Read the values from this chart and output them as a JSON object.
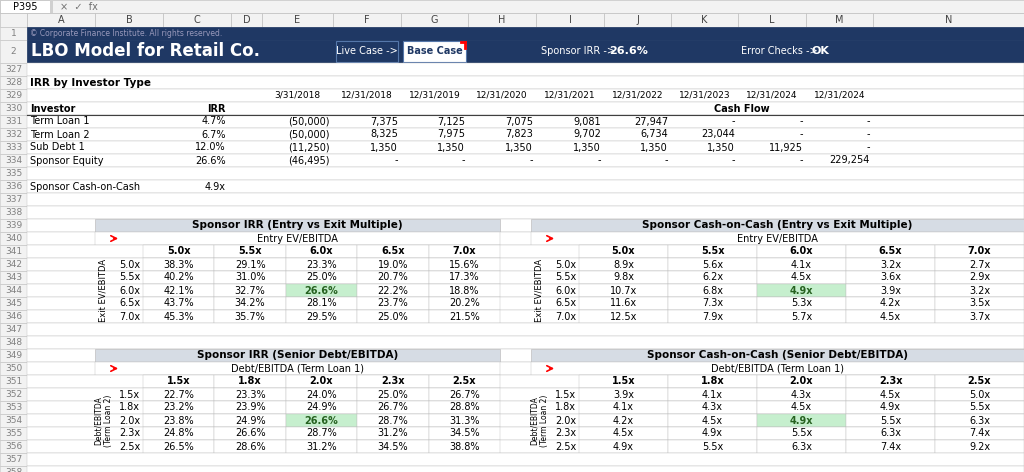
{
  "header_bg": "#1f3864",
  "copyright": "© Corporate Finance Institute. All rights reserved.",
  "title": "LBO Model for Retail Co.",
  "live_case": "Live Case ->",
  "base_case": "Base Case",
  "sponsor_irr_label": "Sponsor IRR ->",
  "sponsor_irr_value": "26.6%",
  "error_checks_label": "Error Checks ->",
  "error_checks_value": "OK",
  "section_header_bg": "#d6dce4",
  "irr_section_title": "IRR by Investor Type",
  "irr_dates_row329": [
    "3/31/2018",
    "12/31/2018",
    "12/31/2019",
    "12/31/2020",
    "12/31/2021",
    "12/31/2022",
    "12/31/2023",
    "12/31/2024",
    "12/31/2024"
  ],
  "cash_flow_label": "Cash Flow",
  "investors": [
    "Term Loan 1",
    "Term Loan 2",
    "Sub Debt 1",
    "Sponsor Equity"
  ],
  "irr_values": [
    "4.7%",
    "6.7%",
    "12.0%",
    "26.6%"
  ],
  "cash_flows": [
    [
      "(50,000)",
      "7,375",
      "7,125",
      "7,075",
      "9,081",
      "27,947",
      "-",
      "-",
      "-"
    ],
    [
      "(50,000)",
      "8,325",
      "7,975",
      "7,823",
      "9,702",
      "6,734",
      "23,044",
      "-",
      "-"
    ],
    [
      "(11,250)",
      "1,350",
      "1,350",
      "1,350",
      "1,350",
      "1,350",
      "1,350",
      "11,925",
      "-"
    ],
    [
      "(46,495)",
      "-",
      "-",
      "-",
      "-",
      "-",
      "-",
      "-",
      "229,254"
    ]
  ],
  "sponsor_coc_label": "Sponsor Cash-on-Cash",
  "sponsor_coc_value": "4.9x",
  "irr_table_title": "Sponsor IRR (Entry vs Exit Multiple)",
  "irr_table_subtitle": "Entry EV/EBITDA",
  "irr_entry_cols": [
    "5.0x",
    "5.5x",
    "6.0x",
    "6.5x",
    "7.0x"
  ],
  "irr_exit_rows": [
    "5.0x",
    "5.5x",
    "6.0x",
    "6.5x",
    "7.0x"
  ],
  "irr_exit_label": "Exit EV/EBITDA",
  "irr_table_data": [
    [
      "38.3%",
      "29.1%",
      "23.3%",
      "19.0%",
      "15.6%"
    ],
    [
      "40.2%",
      "31.0%",
      "25.0%",
      "20.7%",
      "17.3%"
    ],
    [
      "42.1%",
      "32.7%",
      "26.6%",
      "22.2%",
      "18.8%"
    ],
    [
      "43.7%",
      "34.2%",
      "28.1%",
      "23.7%",
      "20.2%"
    ],
    [
      "45.3%",
      "35.7%",
      "29.5%",
      "25.0%",
      "21.5%"
    ]
  ],
  "coc_table_title": "Sponsor Cash-on-Cash (Entry vs Exit Multiple)",
  "coc_table_subtitle": "Entry EV/EBITDA",
  "coc_entry_cols": [
    "5.0x",
    "5.5x",
    "6.0x",
    "6.5x",
    "7.0x"
  ],
  "coc_exit_rows": [
    "5.0x",
    "5.5x",
    "6.0x",
    "6.5x",
    "7.0x"
  ],
  "coc_exit_label": "Exit EV/EBITDA",
  "coc_table_data": [
    [
      "8.9x",
      "5.6x",
      "4.1x",
      "3.2x",
      "2.7x"
    ],
    [
      "9.8x",
      "6.2x",
      "4.5x",
      "3.6x",
      "2.9x"
    ],
    [
      "10.7x",
      "6.8x",
      "4.9x",
      "3.9x",
      "3.2x"
    ],
    [
      "11.6x",
      "7.3x",
      "5.3x",
      "4.2x",
      "3.5x"
    ],
    [
      "12.5x",
      "7.9x",
      "5.7x",
      "4.5x",
      "3.7x"
    ]
  ],
  "irr_sd_title": "Sponsor IRR (Senior Debt/EBITDA)",
  "irr_sd_subtitle": "Debt/EBITDA (Term Loan 1)",
  "irr_sd_cols": [
    "1.5x",
    "1.8x",
    "2.0x",
    "2.3x",
    "2.5x"
  ],
  "irr_sd_rows": [
    "1.5x",
    "1.8x",
    "2.0x",
    "2.3x",
    "2.5x"
  ],
  "irr_sd_row_label": "Debt/EBITDA\n(Term Loan 2)",
  "irr_sd_data": [
    [
      "22.7%",
      "23.3%",
      "24.0%",
      "25.0%",
      "26.7%"
    ],
    [
      "23.2%",
      "23.9%",
      "24.9%",
      "26.7%",
      "28.8%"
    ],
    [
      "23.8%",
      "24.9%",
      "26.6%",
      "28.7%",
      "31.3%"
    ],
    [
      "24.8%",
      "26.6%",
      "28.7%",
      "31.2%",
      "34.5%"
    ],
    [
      "26.5%",
      "28.6%",
      "31.2%",
      "34.5%",
      "38.8%"
    ]
  ],
  "coc_sd_title": "Sponsor Cash-on-Cash (Senior Debt/EBITDA)",
  "coc_sd_subtitle": "Debt/EBITDA (Term Loan 1)",
  "coc_sd_cols": [
    "1.5x",
    "1.8x",
    "2.0x",
    "2.3x",
    "2.5x"
  ],
  "coc_sd_rows": [
    "1.5x",
    "1.8x",
    "2.0x",
    "2.3x",
    "2.5x"
  ],
  "coc_sd_row_label": "Debt/EBITDA\n(Term Loan 2)",
  "coc_sd_data": [
    [
      "3.9x",
      "4.1x",
      "4.3x",
      "4.5x",
      "5.0x"
    ],
    [
      "4.1x",
      "4.3x",
      "4.5x",
      "4.9x",
      "5.5x"
    ],
    [
      "4.2x",
      "4.5x",
      "4.9x",
      "5.5x",
      "6.3x"
    ],
    [
      "4.5x",
      "4.9x",
      "5.5x",
      "6.3x",
      "7.4x"
    ],
    [
      "4.9x",
      "5.5x",
      "6.3x",
      "7.4x",
      "9.2x"
    ]
  ],
  "highlight_cell_bg": "#c6efce",
  "highlight_cell_color": "#276221"
}
